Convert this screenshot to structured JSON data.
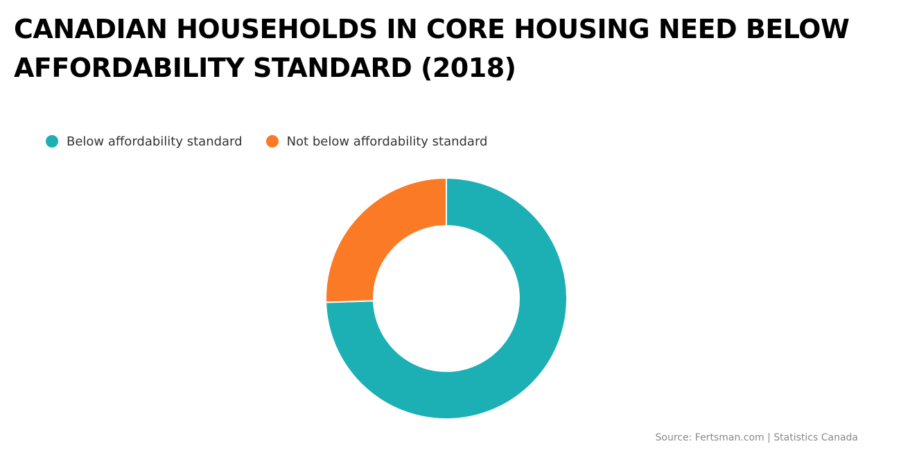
{
  "chart_data": {
    "type": "pie",
    "title": "CANADIAN HOUSEHOLDS IN CORE HOUSING NEED BELOW AFFORDABILITY STANDARD (2018)",
    "categories": [
      "Below affordability standard",
      "Not below affordability standard"
    ],
    "values": [
      74.5,
      25.5
    ],
    "unit": "%",
    "colors": [
      "#1cb0b5",
      "#fb7a25"
    ],
    "legend_position": "top-left",
    "donut": true
  },
  "source": "Source: Fertsman.com | Statistics Canada"
}
